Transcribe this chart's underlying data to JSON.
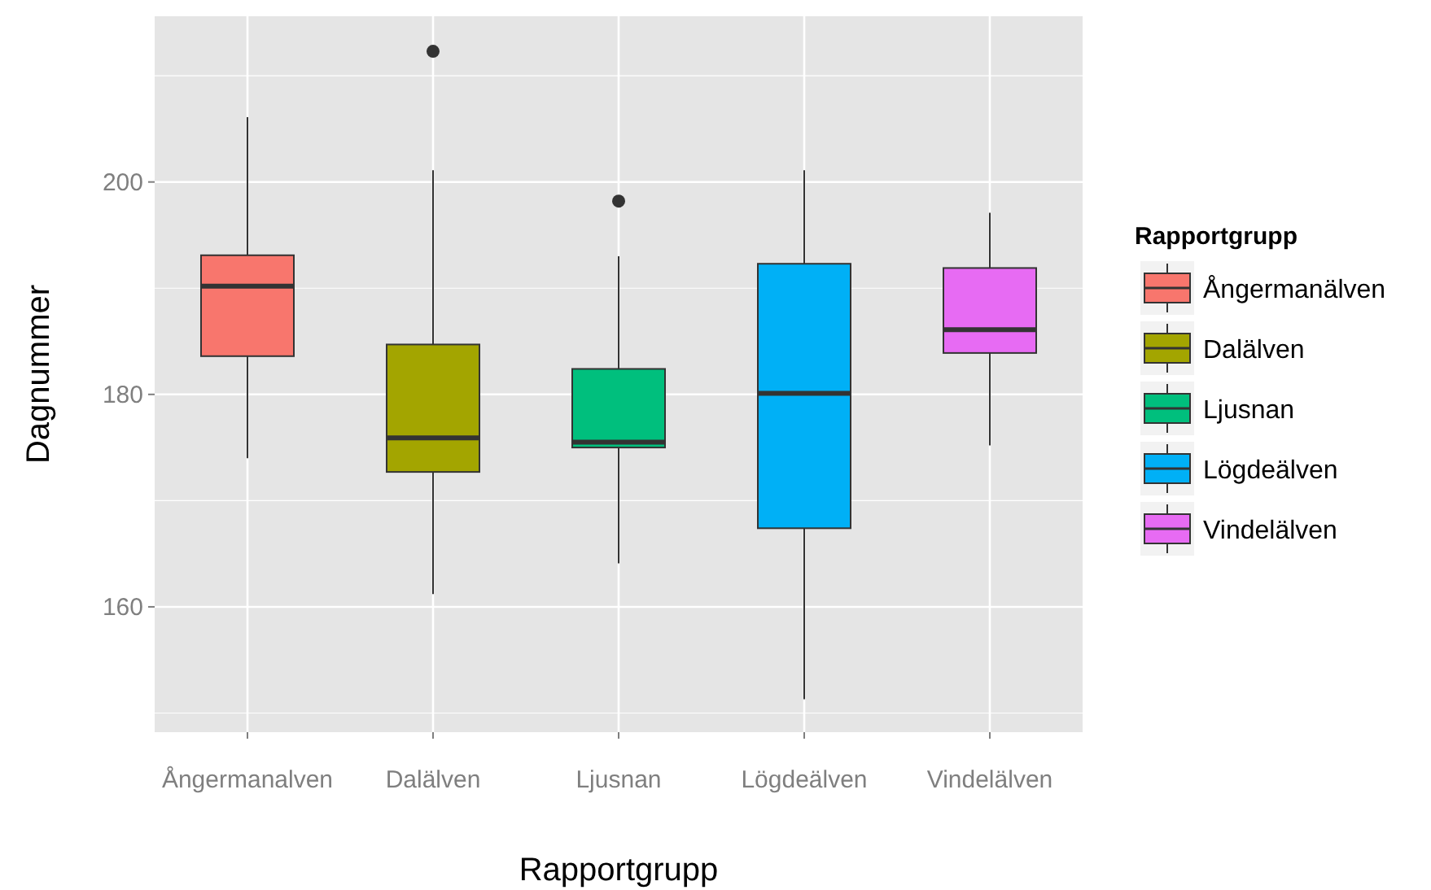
{
  "chart_data": {
    "type": "box",
    "xlabel": "Rapportgrupp",
    "ylabel": "Dagnummer",
    "legend_title": "Rapportgrupp",
    "legend": "right",
    "grid": true,
    "categories": [
      "Ångermanalven",
      "Dalälven",
      "Ljusnan",
      "Lögdeälven",
      "Vindelälven"
    ],
    "series": [
      {
        "name": "Ångermanälven",
        "color": "#f8766d",
        "boxes": [
          {
            "low": 174,
            "q1": 183.6,
            "median": 190.2,
            "q3": 193.1,
            "high": 206.1
          },
          null,
          null,
          null,
          null
        ]
      },
      {
        "name": "Dalälven",
        "color": "#a3a500",
        "boxes": [
          null,
          {
            "low": 161.2,
            "q1": 172.7,
            "median": 175.9,
            "q3": 184.7,
            "high": 201.1,
            "outliers": [
              212.3
            ]
          },
          null,
          null,
          null
        ]
      },
      {
        "name": "Ljusnan",
        "color": "#00bf7d",
        "boxes": [
          null,
          null,
          {
            "low": 164.1,
            "q1": 175,
            "median": 175.5,
            "q3": 182.4,
            "high": 193,
            "outliers": [
              198.2
            ]
          },
          null,
          null
        ]
      },
      {
        "name": "Lögdeälven",
        "color": "#00b0f6",
        "boxes": [
          null,
          null,
          null,
          {
            "low": 151.3,
            "q1": 167.4,
            "median": 180.1,
            "q3": 192.3,
            "high": 201.1
          },
          null
        ]
      },
      {
        "name": "Vindelälven",
        "color": "#e76bf3",
        "boxes": [
          null,
          null,
          null,
          null,
          {
            "low": 175.2,
            "q1": 183.9,
            "median": 186.1,
            "q3": 191.9,
            "high": 197.1
          }
        ]
      }
    ],
    "ylim": [
      148.2,
      215.6
    ],
    "yticks": [
      {
        "value": 150,
        "label": null
      },
      160,
      {
        "value": 170,
        "label": null
      },
      180,
      {
        "value": 190,
        "label": null
      },
      200,
      {
        "value": 210,
        "label": null
      }
    ]
  }
}
